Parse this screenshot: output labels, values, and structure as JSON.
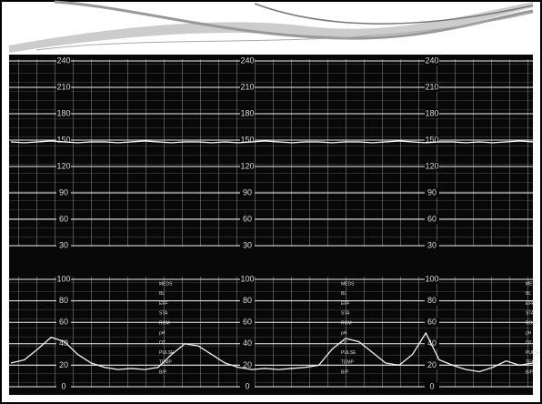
{
  "chart_data": [
    {
      "type": "line",
      "color": "#f2f2f2",
      "grid": true,
      "ylim": [
        30,
        240
      ],
      "yticks": [
        30,
        60,
        90,
        120,
        150,
        180,
        210,
        240
      ],
      "values": [
        148,
        147,
        148,
        149,
        148,
        147,
        148,
        148,
        147,
        148,
        149,
        148,
        147,
        148,
        148,
        147,
        148,
        147,
        148,
        149,
        148,
        147,
        148,
        148,
        147,
        148,
        148,
        147,
        148,
        149,
        148,
        147,
        148,
        148,
        147,
        148,
        147,
        148,
        149,
        148
      ]
    },
    {
      "type": "line",
      "color": "#f2f2f2",
      "grid": true,
      "ylim": [
        0,
        100
      ],
      "yticks": [
        0,
        20,
        40,
        60,
        80,
        100
      ],
      "annotations": [
        "MEDS",
        "BL",
        "EFF",
        "STA",
        "ROM",
        "pH",
        "O2",
        "PULSE",
        "TEMP",
        "B/P"
      ],
      "values": [
        22,
        25,
        35,
        46,
        42,
        30,
        22,
        18,
        16,
        17,
        16,
        18,
        30,
        40,
        38,
        30,
        22,
        18,
        16,
        17,
        16,
        17,
        18,
        20,
        35,
        45,
        42,
        32,
        22,
        20,
        30,
        50,
        25,
        20,
        16,
        14,
        18,
        24,
        20,
        22
      ]
    }
  ]
}
